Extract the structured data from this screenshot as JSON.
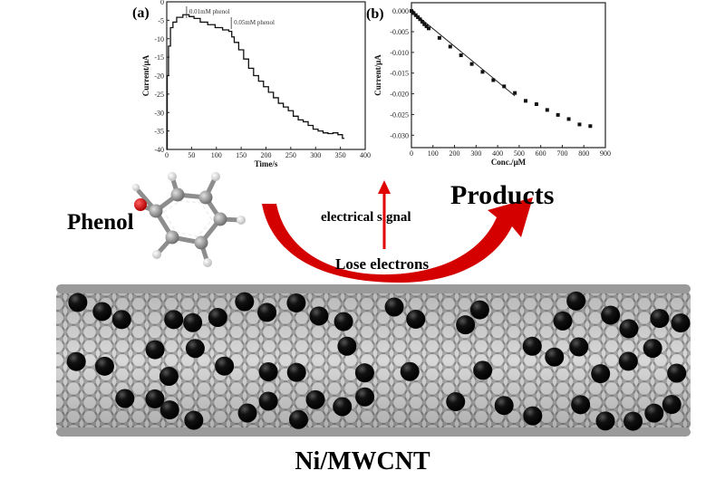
{
  "figure": {
    "phenol_label": "Phenol",
    "products_label": "Products",
    "electrical_signal_label": "electrical signal",
    "lose_electrons_label": "Lose electrons",
    "catalyst_label": "Ni/MWCNT",
    "colors": {
      "arrow": "#d40000",
      "oxygen": "#d01010",
      "carbon": "#8a8a8a",
      "hydrogen": "#e6e6e6",
      "nickel": "#000000"
    },
    "molecule": "phenol ball-and-stick model",
    "nanotube": "multi-walled carbon nanotube decorated with Ni particles"
  },
  "chart_data": [
    {
      "type": "line",
      "panel_label": "(a)",
      "xlabel": "Time/s",
      "ylabel": "Current/μA",
      "xlim": [
        0,
        400
      ],
      "ylim": [
        -40,
        0
      ],
      "xticks": [
        "0",
        "50",
        "100",
        "150",
        "200",
        "250",
        "300",
        "350",
        "400"
      ],
      "yticks": [
        "0",
        "-5",
        "-10",
        "-15",
        "-20",
        "-25",
        "-30",
        "-35",
        "-40"
      ],
      "annotations": [
        {
          "text": "0.01mM phenol",
          "x": 40
        },
        {
          "text": "0.05mM phenol",
          "x": 130
        }
      ],
      "x": [
        0,
        2,
        5,
        10,
        15,
        25,
        40,
        50,
        60,
        75,
        90,
        105,
        120,
        130,
        132,
        140,
        150,
        160,
        170,
        180,
        190,
        200,
        210,
        220,
        230,
        240,
        250,
        260,
        270,
        280,
        290,
        300,
        310,
        320,
        330,
        340,
        350,
        358
      ],
      "y": [
        -40,
        -20,
        -12,
        -7,
        -5.5,
        -4.2,
        -3.5,
        -4,
        -4.5,
        -5.5,
        -6.2,
        -7,
        -7.6,
        -8,
        -9.5,
        -11,
        -13,
        -15.5,
        -18,
        -20,
        -21.5,
        -23,
        -24.5,
        -26,
        -27.5,
        -28.5,
        -29.5,
        -31,
        -32,
        -32.5,
        -33.5,
        -34.5,
        -35,
        -35.5,
        -35.7,
        -35.5,
        -36,
        -37
      ]
    },
    {
      "type": "scatter",
      "panel_label": "(b)",
      "xlabel": "Conc./μM",
      "ylabel": "Current/μA",
      "xlim": [
        0,
        900
      ],
      "ylim": [
        -0.033,
        0.002
      ],
      "xticks": [
        "0",
        "100",
        "200",
        "300",
        "400",
        "500",
        "600",
        "700",
        "800",
        "900"
      ],
      "yticks": [
        "0.000",
        "-0.005",
        "-0.010",
        "-0.015",
        "-0.020",
        "-0.025",
        "-0.030"
      ],
      "x": [
        0,
        10,
        20,
        30,
        40,
        50,
        60,
        70,
        80,
        130,
        180,
        230,
        280,
        330,
        380,
        430,
        480,
        530,
        580,
        630,
        680,
        730,
        780,
        830
      ],
      "y": [
        0,
        -0.0005,
        -0.001,
        -0.0015,
        -0.002,
        -0.0026,
        -0.0032,
        -0.0037,
        -0.0042,
        -0.0065,
        -0.0086,
        -0.0107,
        -0.0128,
        -0.0147,
        -0.0167,
        -0.0182,
        -0.0198,
        -0.0217,
        -0.0225,
        -0.0239,
        -0.0251,
        -0.0261,
        -0.0274,
        -0.0278
      ],
      "fit_line": {
        "x": [
          0,
          480
        ],
        "y": [
          0,
          -0.0205
        ]
      }
    }
  ]
}
